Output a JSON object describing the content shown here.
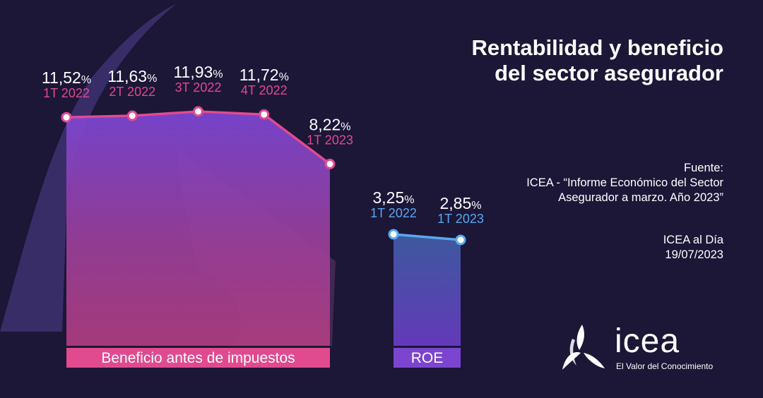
{
  "title": "Rentabilidad y beneficio del sector asegurador",
  "source": {
    "label": "Fuente:",
    "text": "ICEA - “Informe Económico del Sector Asegurador a marzo. Año 2023”"
  },
  "publication": {
    "name": "ICEA al Día",
    "date": "19/07/2023"
  },
  "logo": {
    "wordmark": "icea",
    "tagline": "El Valor del Conocimiento"
  },
  "colors": {
    "background": "#1c1637",
    "pink": "#e14a8f",
    "blue": "#5aa8ee",
    "purple": "#7b45d0"
  },
  "chart_data": [
    {
      "type": "area",
      "series_label": "Beneficio antes de impuestos",
      "categories": [
        "1T 2022",
        "2T 2022",
        "3T 2022",
        "4T 2022",
        "1T 2023"
      ],
      "values": [
        11.52,
        11.63,
        11.93,
        11.72,
        8.22
      ],
      "value_labels": [
        "11,52",
        "11,63",
        "11,93",
        "11,72",
        "8,22"
      ],
      "unit": "%",
      "color": "#e14a8f"
    },
    {
      "type": "area",
      "series_label": "ROE",
      "categories": [
        "1T 2022",
        "1T 2023"
      ],
      "values": [
        3.25,
        2.85
      ],
      "value_labels": [
        "3,25",
        "2,85"
      ],
      "unit": "%",
      "color": "#5aa8ee"
    }
  ]
}
